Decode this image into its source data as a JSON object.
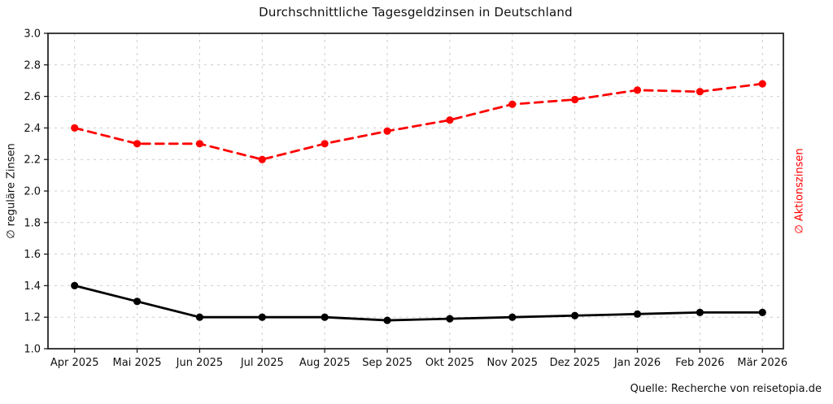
{
  "chart_data": {
    "type": "line",
    "title": "Durchschnittliche Tagesgeldzinsen in Deutschland",
    "source": "Quelle: Recherche von reisetopia.de",
    "ylabel_left": "∅ reguläre Zinsen",
    "ylabel_right": "∅ Aktionszinsen",
    "categories": [
      "Apr 2025",
      "Mai 2025",
      "Jun 2025",
      "Jul 2025",
      "Aug 2025",
      "Sep 2025",
      "Okt 2025",
      "Nov 2025",
      "Dez 2025",
      "Jan 2026",
      "Feb 2026",
      "Mär 2026"
    ],
    "series": [
      {
        "name": "∅ reguläre Zinsen",
        "axis": "left",
        "color": "#000000",
        "line_style": "solid",
        "marker": "circle",
        "values": [
          1.4,
          1.3,
          1.2,
          1.2,
          1.2,
          1.18,
          1.19,
          1.2,
          1.21,
          1.22,
          1.23,
          1.23
        ]
      },
      {
        "name": "∅ Aktionszinsen",
        "axis": "right",
        "color": "#ff0000",
        "line_style": "dashed",
        "marker": "circle",
        "values": [
          2.4,
          2.3,
          2.3,
          2.2,
          2.3,
          2.38,
          2.45,
          2.55,
          2.58,
          2.64,
          2.63,
          2.68
        ]
      }
    ],
    "ylim": [
      1.0,
      3.0
    ],
    "ytick_step": 0.2,
    "ytick_decimals": 1,
    "grid": true,
    "legend_position": "none",
    "colors": {
      "grid": "#cccccc",
      "axis": "#1a1a1a",
      "background": "#ffffff",
      "regular_series": "#000000",
      "aktions_series": "#ff0000"
    }
  }
}
